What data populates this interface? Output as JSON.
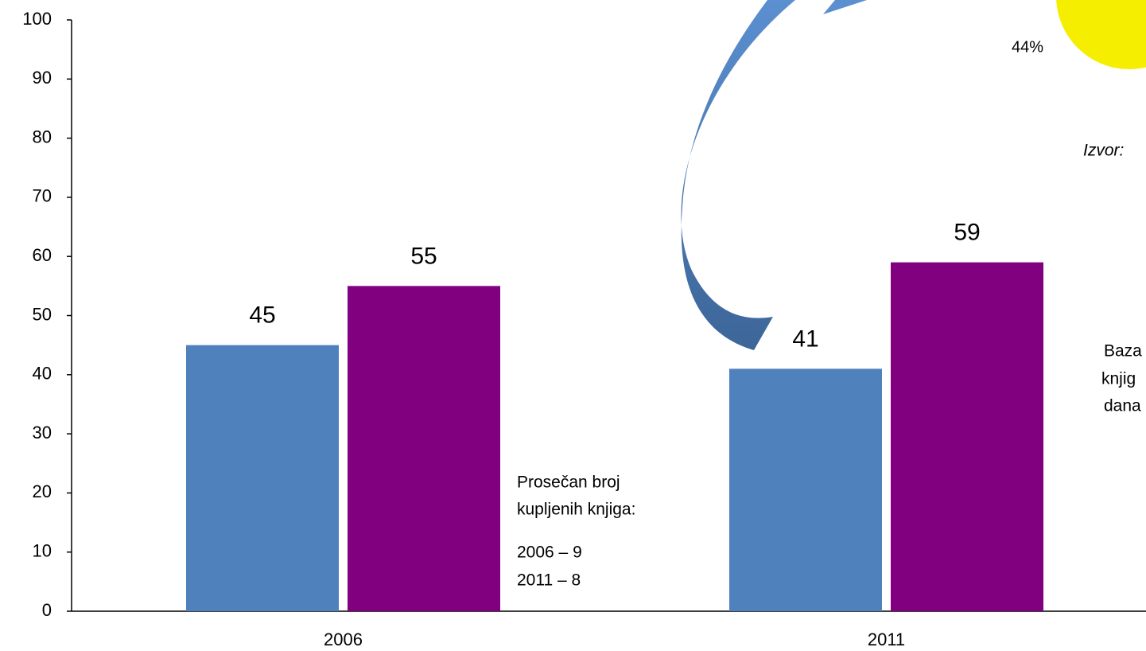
{
  "chart_data": {
    "type": "bar",
    "categories": [
      "2006",
      "2011"
    ],
    "series": [
      {
        "color": "#4f81bd",
        "values": [
          45,
          41
        ]
      },
      {
        "color": "#800080",
        "values": [
          55,
          59
        ]
      }
    ],
    "ylim": [
      0,
      100
    ],
    "yticks": [
      0,
      10,
      20,
      30,
      40,
      50,
      60,
      70,
      80,
      90,
      100
    ],
    "grid": false,
    "annotations": [
      "Prosečan broj",
      "kupljenih knjiga:",
      "2006 – 9",
      "2011 – 8",
      "44%",
      "Izvor:",
      "Baza",
      "knjig",
      "dana"
    ]
  }
}
